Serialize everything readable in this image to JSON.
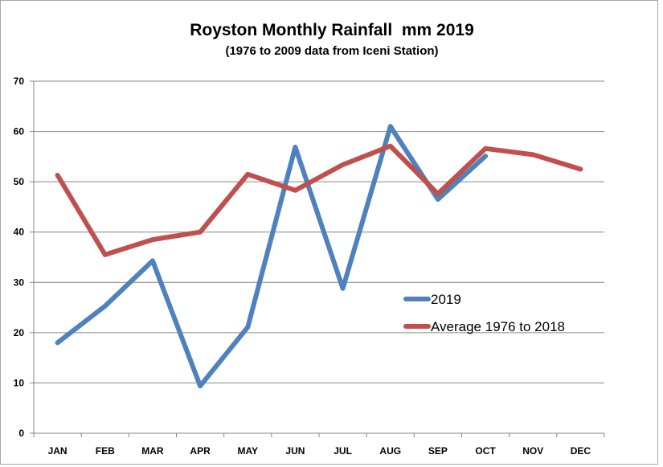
{
  "chart_data": {
    "type": "line",
    "title": "Royston Monthly Rainfall  mm 2019",
    "subtitle": "(1976 to 2009 data from Iceni Station)",
    "xlabel": "",
    "ylabel": "",
    "categories": [
      "JAN",
      "FEB",
      "MAR",
      "APR",
      "MAY",
      "JUN",
      "JUL",
      "AUG",
      "SEP",
      "OCT",
      "NOV",
      "DEC"
    ],
    "ylim": [
      0,
      70
    ],
    "yticks": [
      0,
      10,
      20,
      30,
      40,
      50,
      60,
      70
    ],
    "grid": true,
    "legend_position": "right",
    "series": [
      {
        "name": "2019",
        "color": "#4f81bd",
        "values": [
          18.0,
          25.3,
          34.3,
          9.4,
          21.1,
          56.9,
          28.8,
          61.0,
          46.5,
          55.1,
          null,
          null
        ]
      },
      {
        "name": "Average 1976 to 2018",
        "color": "#c0504d",
        "values": [
          51.3,
          35.5,
          38.5,
          40.0,
          51.5,
          48.3,
          53.4,
          57.1,
          47.6,
          56.6,
          55.4,
          52.5
        ]
      }
    ]
  }
}
